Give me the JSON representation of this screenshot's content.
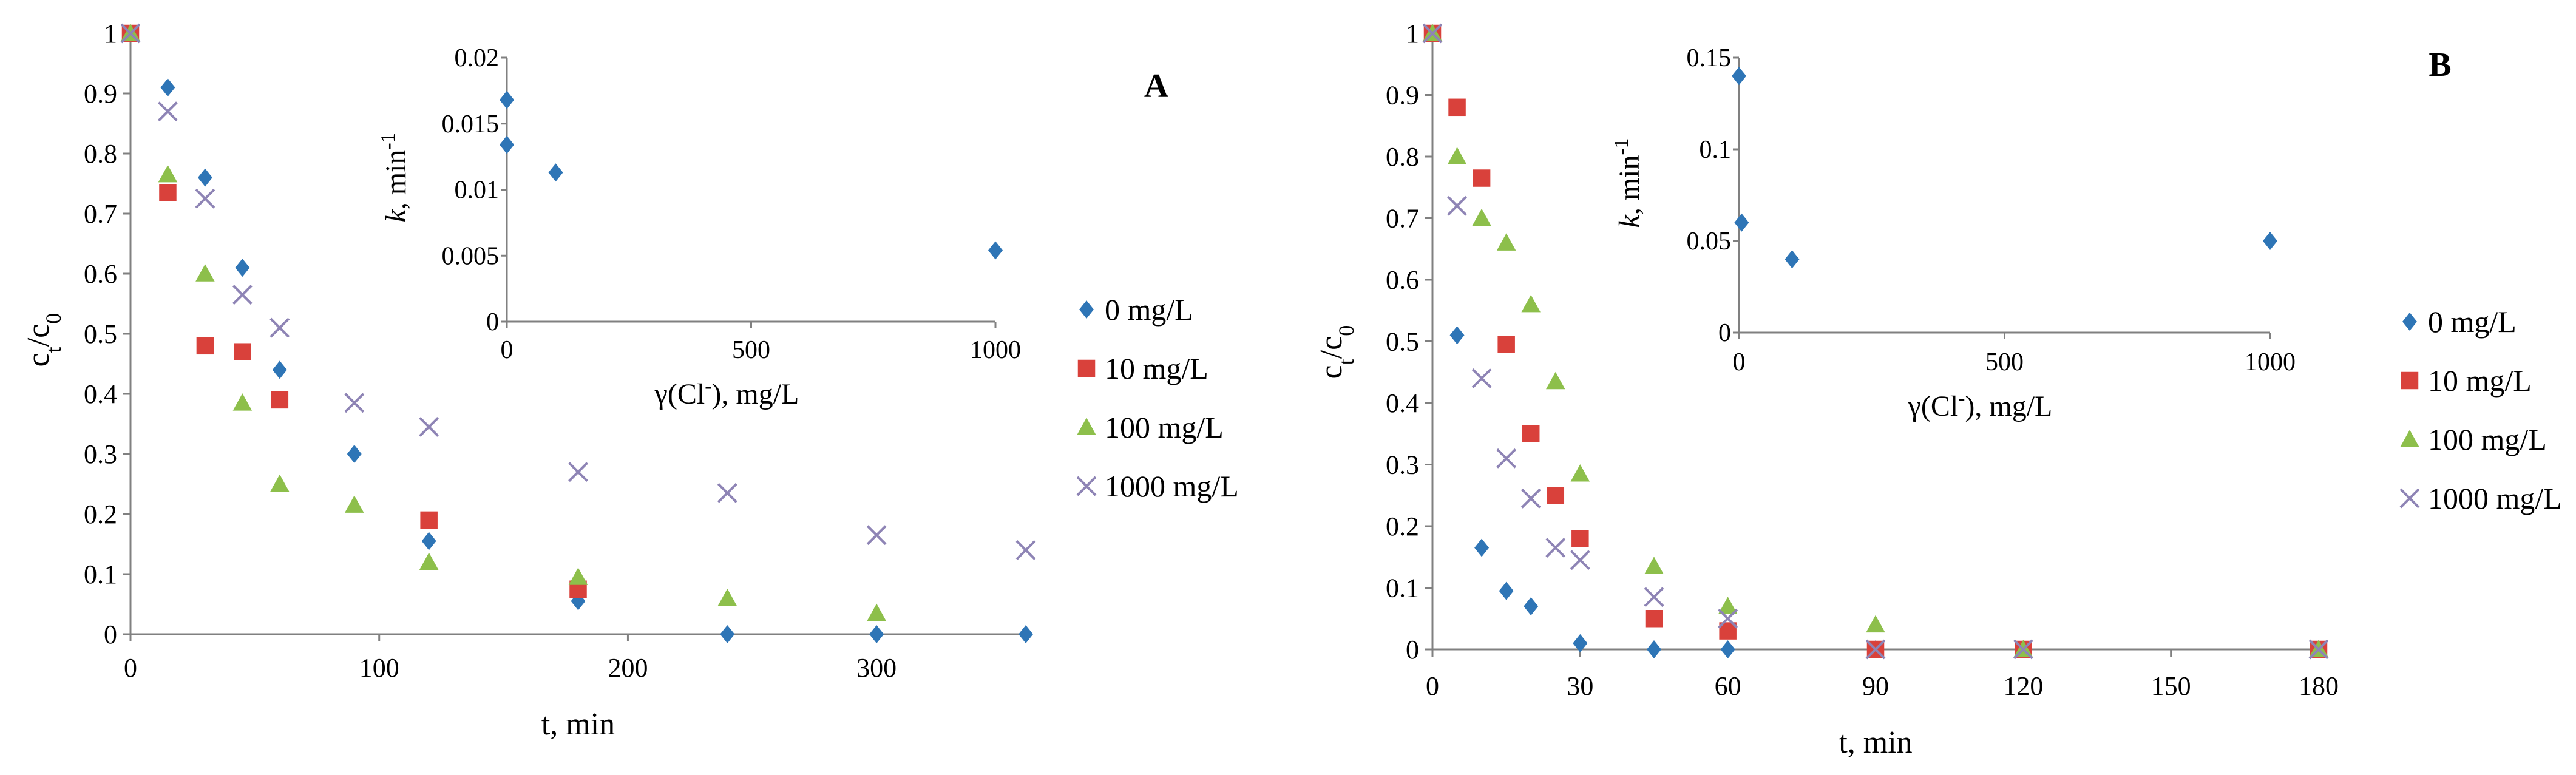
{
  "colors": {
    "0 mg/L": "#2E75B6",
    "10 mg/L": "#D9413B",
    "100 mg/L": "#8DBF4B",
    "1000 mg/L": "#8E84B5",
    "axis": "#808080"
  },
  "chart_data": [
    {
      "type": "scatter",
      "panel_label": "A",
      "ylabel": "ct/c0",
      "xlabel": "t, min",
      "xlim": [
        0,
        360
      ],
      "ylim": [
        0,
        1
      ],
      "xticks": [
        "0",
        "100",
        "200",
        "300"
      ],
      "xtick_values": [
        0,
        100,
        200,
        300
      ],
      "yticks": [
        "0",
        "0.1",
        "0.2",
        "0.3",
        "0.4",
        "0.5",
        "0.6",
        "0.7",
        "0.8",
        "0.9",
        "1"
      ],
      "legend_position": "right",
      "series": [
        {
          "name": "0 mg/L",
          "marker": "diamond",
          "points": [
            [
              0,
              1.0
            ],
            [
              15,
              0.91
            ],
            [
              30,
              0.76
            ],
            [
              45,
              0.61
            ],
            [
              60,
              0.44
            ],
            [
              90,
              0.3
            ],
            [
              120,
              0.155
            ],
            [
              180,
              0.055
            ],
            [
              240,
              0.0
            ],
            [
              300,
              0.0
            ],
            [
              360,
              0.0
            ]
          ]
        },
        {
          "name": "10 mg/L",
          "marker": "square",
          "points": [
            [
              0,
              1.0
            ],
            [
              15,
              0.735
            ],
            [
              30,
              0.48
            ],
            [
              45,
              0.47
            ],
            [
              60,
              0.39
            ],
            [
              120,
              0.19
            ],
            [
              180,
              0.075
            ]
          ]
        },
        {
          "name": "100 mg/L",
          "marker": "triangle",
          "points": [
            [
              0,
              1.0
            ],
            [
              15,
              0.765
            ],
            [
              30,
              0.6
            ],
            [
              45,
              0.385
            ],
            [
              60,
              0.25
            ],
            [
              90,
              0.215
            ],
            [
              120,
              0.12
            ],
            [
              180,
              0.095
            ],
            [
              240,
              0.06
            ],
            [
              300,
              0.035
            ]
          ]
        },
        {
          "name": "1000 mg/L",
          "marker": "x",
          "points": [
            [
              0,
              1.0
            ],
            [
              15,
              0.87
            ],
            [
              30,
              0.725
            ],
            [
              45,
              0.565
            ],
            [
              60,
              0.51
            ],
            [
              90,
              0.385
            ],
            [
              120,
              0.345
            ],
            [
              180,
              0.27
            ],
            [
              240,
              0.235
            ],
            [
              300,
              0.165
            ],
            [
              360,
              0.14
            ]
          ]
        }
      ],
      "inset": {
        "ylabel": "k, min-1",
        "xlabel": "γ(Cl-), mg/L",
        "xlim": [
          0,
          1000
        ],
        "ylim": [
          0,
          0.02
        ],
        "xticks": [
          "0",
          "500",
          "1000"
        ],
        "xtick_values": [
          0,
          500,
          1000
        ],
        "yticks": [
          "0",
          "0.005",
          "0.01",
          "0.015",
          "0.02"
        ],
        "series": [
          {
            "name": "k",
            "marker": "diamond",
            "points": [
              [
                0,
                0.0168
              ],
              [
                0,
                0.0134
              ],
              [
                100,
                0.0113
              ],
              [
                1000,
                0.0054
              ]
            ]
          }
        ]
      }
    },
    {
      "type": "scatter",
      "panel_label": "B",
      "ylabel": "ct/c0",
      "xlabel": "t, min",
      "xlim": [
        0,
        180
      ],
      "ylim": [
        0,
        1
      ],
      "xticks": [
        "0",
        "30",
        "60",
        "90",
        "120",
        "150",
        "180"
      ],
      "xtick_values": [
        0,
        30,
        60,
        90,
        120,
        150,
        180
      ],
      "yticks": [
        "0",
        "0.1",
        "0.2",
        "0.3",
        "0.4",
        "0.5",
        "0.6",
        "0.7",
        "0.8",
        "0.9",
        "1"
      ],
      "legend_position": "right",
      "series": [
        {
          "name": "0 mg/L",
          "marker": "diamond",
          "points": [
            [
              0,
              1.0
            ],
            [
              5,
              0.51
            ],
            [
              10,
              0.165
            ],
            [
              15,
              0.095
            ],
            [
              20,
              0.07
            ],
            [
              30,
              0.01
            ],
            [
              45,
              0.0
            ],
            [
              60,
              0.0
            ],
            [
              90,
              0.0
            ],
            [
              120,
              0.0
            ],
            [
              180,
              0.0
            ]
          ]
        },
        {
          "name": "10 mg/L",
          "marker": "square",
          "points": [
            [
              0,
              1.0
            ],
            [
              5,
              0.88
            ],
            [
              10,
              0.765
            ],
            [
              15,
              0.495
            ],
            [
              20,
              0.35
            ],
            [
              25,
              0.25
            ],
            [
              30,
              0.18
            ],
            [
              45,
              0.05
            ],
            [
              60,
              0.03
            ],
            [
              90,
              0.0
            ],
            [
              120,
              0.0
            ],
            [
              180,
              0.0
            ]
          ]
        },
        {
          "name": "100 mg/L",
          "marker": "triangle",
          "points": [
            [
              0,
              1.0
            ],
            [
              5,
              0.8
            ],
            [
              10,
              0.7
            ],
            [
              15,
              0.66
            ],
            [
              20,
              0.56
            ],
            [
              25,
              0.435
            ],
            [
              30,
              0.285
            ],
            [
              45,
              0.135
            ],
            [
              60,
              0.07
            ],
            [
              90,
              0.04
            ],
            [
              120,
              0.0
            ],
            [
              180,
              0.0
            ]
          ]
        },
        {
          "name": "1000 mg/L",
          "marker": "x",
          "points": [
            [
              0,
              1.0
            ],
            [
              5,
              0.72
            ],
            [
              10,
              0.44
            ],
            [
              15,
              0.31
            ],
            [
              20,
              0.245
            ],
            [
              25,
              0.165
            ],
            [
              30,
              0.145
            ],
            [
              45,
              0.085
            ],
            [
              60,
              0.05
            ],
            [
              90,
              0.0
            ],
            [
              120,
              0.0
            ],
            [
              180,
              0.0
            ]
          ]
        }
      ],
      "inset": {
        "ylabel": "k, min-1",
        "xlabel": "γ(Cl-), mg/L",
        "xlim": [
          0,
          1000
        ],
        "ylim": [
          0,
          0.15
        ],
        "xticks": [
          "0",
          "500",
          "1000"
        ],
        "xtick_values": [
          0,
          500,
          1000
        ],
        "yticks": [
          "0",
          "0.05",
          "0.1",
          "0.15"
        ],
        "series": [
          {
            "name": "k",
            "marker": "diamond",
            "points": [
              [
                0,
                0.14
              ],
              [
                5,
                0.06
              ],
              [
                100,
                0.04
              ],
              [
                1000,
                0.05
              ]
            ]
          }
        ]
      }
    }
  ]
}
